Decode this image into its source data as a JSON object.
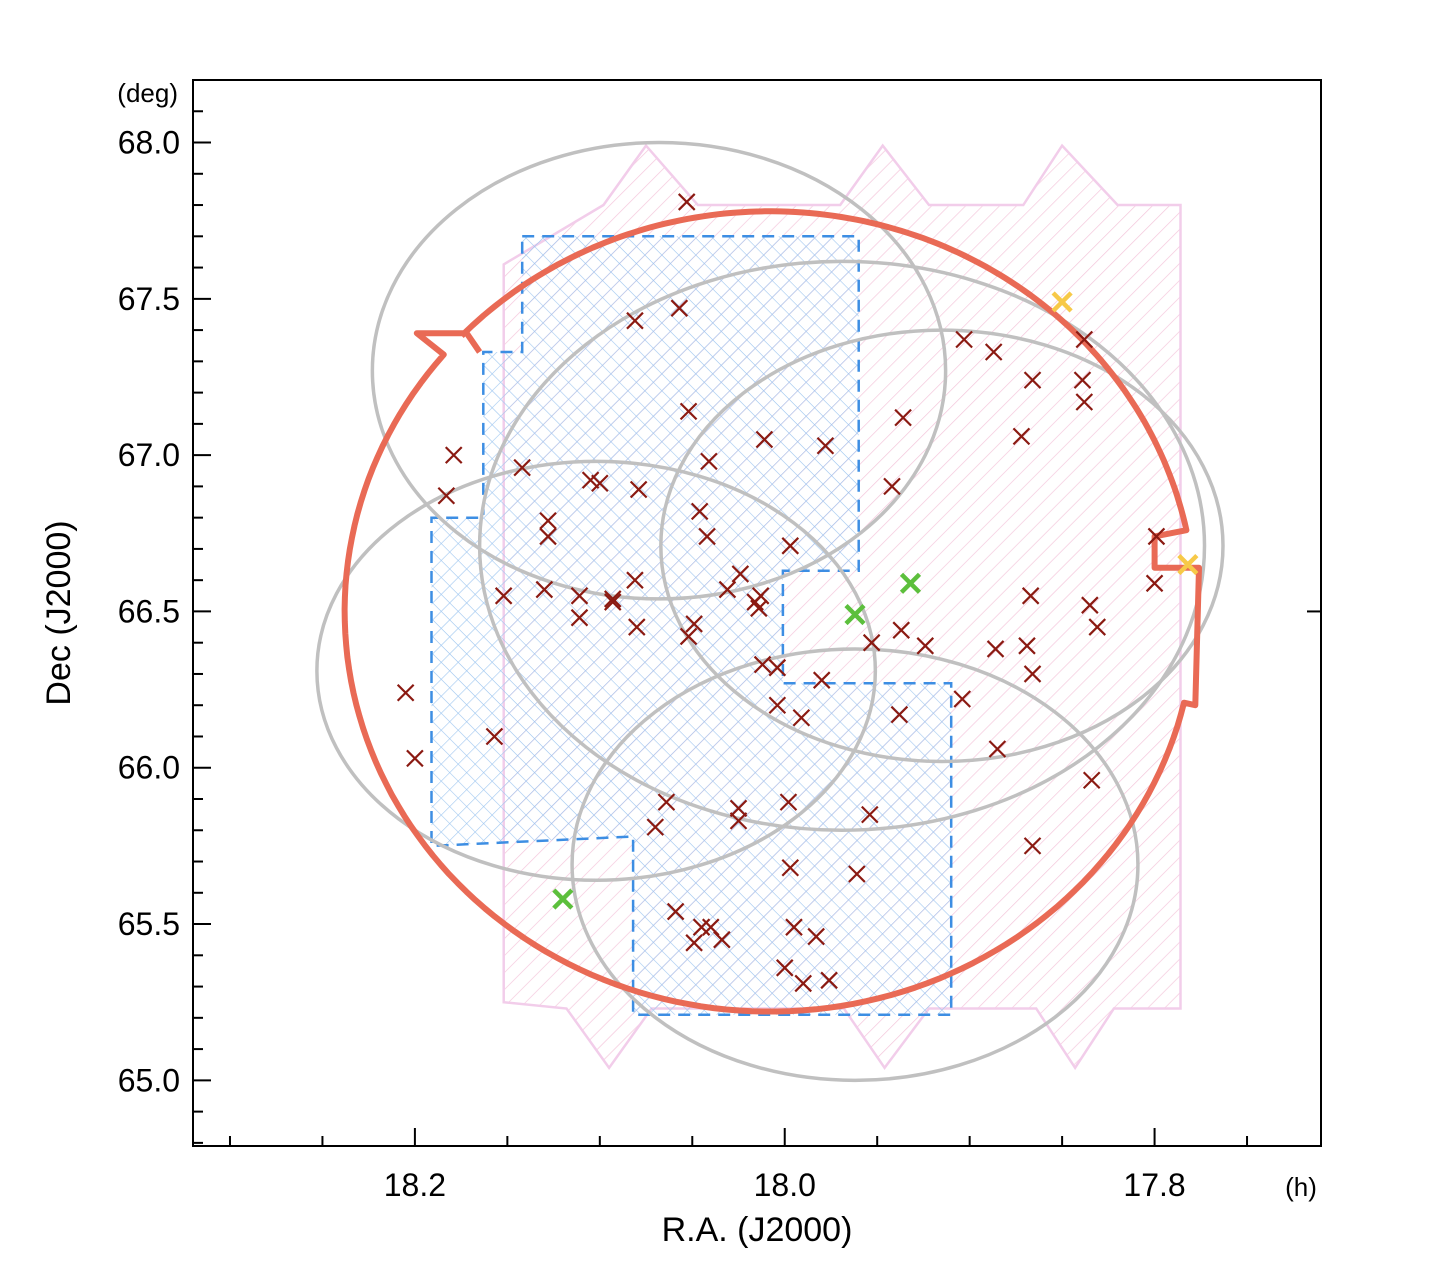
{
  "chart_data": {
    "type": "scatter",
    "title": "",
    "xlabel": "R.A. (J2000)",
    "ylabel": "Dec (J2000)",
    "x_unit": "(h)",
    "y_unit": "(deg)",
    "xlim": [
      18.32,
      17.71
    ],
    "ylim": [
      64.79,
      68.2
    ],
    "x_ticks": [
      18.2,
      18.0,
      17.8
    ],
    "x_tick_labels": [
      "18.2",
      "18.0",
      "17.8"
    ],
    "y_ticks": [
      65.0,
      65.5,
      66.0,
      66.5,
      67.0,
      67.5,
      68.0
    ],
    "y_tick_labels": [
      "65.0",
      "65.5",
      "66.0",
      "66.5",
      "67.0",
      "67.5",
      "68.0"
    ],
    "x_minor_step": 0.05,
    "y_minor_step": 0.1,
    "colors": {
      "dark_red": "#8b1a12",
      "green": "#5cbf3c",
      "yellow": "#f7c948",
      "red_outline": "#e96a55",
      "blue_dashed": "#3d8ee3",
      "blue_hatch": "#9ec6f0",
      "pink_outline": "#f2cdea",
      "pink_hatch": "#f4c7dc",
      "grey_circle": "#c0c0c0"
    },
    "pink_region": {
      "name": "pink hatched survey footprint",
      "polygon": [
        [
          18.152,
          67.61
        ],
        [
          18.098,
          67.8
        ],
        [
          18.075,
          67.99
        ],
        [
          18.047,
          67.8
        ],
        [
          17.97,
          67.8
        ],
        [
          17.947,
          67.99
        ],
        [
          17.922,
          67.8
        ],
        [
          17.871,
          67.8
        ],
        [
          17.85,
          67.99
        ],
        [
          17.82,
          67.8
        ],
        [
          17.786,
          67.8
        ],
        [
          17.786,
          65.23
        ],
        [
          17.822,
          65.23
        ],
        [
          17.843,
          65.04
        ],
        [
          17.864,
          65.23
        ],
        [
          17.922,
          65.23
        ],
        [
          17.946,
          65.04
        ],
        [
          17.968,
          65.23
        ],
        [
          18.072,
          65.23
        ],
        [
          18.095,
          65.04
        ],
        [
          18.118,
          65.23
        ],
        [
          18.152,
          65.25
        ]
      ]
    },
    "blue_region": {
      "name": "blue dashed cross-hatched region",
      "polygon": [
        [
          18.142,
          67.7
        ],
        [
          17.96,
          67.7
        ],
        [
          17.96,
          66.63
        ],
        [
          18.001,
          66.63
        ],
        [
          18.001,
          66.27
        ],
        [
          17.91,
          66.27
        ],
        [
          17.91,
          65.21
        ],
        [
          18.082,
          65.21
        ],
        [
          18.082,
          65.78
        ],
        [
          18.191,
          65.75
        ],
        [
          18.191,
          66.8
        ],
        [
          18.163,
          66.8
        ],
        [
          18.163,
          67.33
        ],
        [
          18.142,
          67.33
        ]
      ]
    },
    "fov_circles": [
      {
        "name": "fov-circle-1",
        "center": [
          18.068,
          67.27
        ],
        "ra_radius": 0.155,
        "dec_radius": 0.73
      },
      {
        "name": "fov-circle-2",
        "center": [
          17.915,
          66.71
        ],
        "ra_radius": 0.152,
        "dec_radius": 0.69
      },
      {
        "name": "fov-circle-3",
        "center": [
          18.102,
          66.31
        ],
        "ra_radius": 0.151,
        "dec_radius": 0.67
      },
      {
        "name": "fov-circle-4",
        "center": [
          17.962,
          65.69
        ],
        "ra_radius": 0.153,
        "dec_radius": 0.69
      },
      {
        "name": "fov-circle-5",
        "center": [
          17.969,
          66.71
        ],
        "ra_radius": 0.196,
        "dec_radius": 0.91
      }
    ],
    "red_outline": {
      "name": "red boundary",
      "center": [
        18.008,
        66.5
      ],
      "ra_radius": 0.23,
      "dec_radius": 1.28,
      "extra_points": [
        [
          18.165,
          67.33
        ],
        [
          18.172,
          67.39
        ],
        [
          18.199,
          67.39
        ]
      ],
      "notch_points": [
        [
          17.8,
          66.74
        ],
        [
          17.8,
          66.64
        ],
        [
          17.776,
          66.64
        ],
        [
          17.778,
          66.2
        ]
      ]
    },
    "series": [
      {
        "name": "dark red crosses",
        "color": "#8b1a12",
        "points": [
          [
            18.053,
            67.81
          ],
          [
            18.081,
            67.43
          ],
          [
            18.057,
            67.47
          ],
          [
            18.052,
            67.14
          ],
          [
            18.179,
            67.0
          ],
          [
            18.183,
            66.87
          ],
          [
            18.142,
            66.96
          ],
          [
            18.128,
            66.79
          ],
          [
            18.128,
            66.74
          ],
          [
            18.105,
            66.92
          ],
          [
            18.1,
            66.91
          ],
          [
            18.079,
            66.89
          ],
          [
            18.046,
            66.82
          ],
          [
            18.042,
            66.74
          ],
          [
            18.041,
            66.98
          ],
          [
            18.011,
            67.05
          ],
          [
            17.997,
            66.71
          ],
          [
            17.978,
            67.03
          ],
          [
            17.936,
            67.12
          ],
          [
            17.942,
            66.9
          ],
          [
            17.903,
            67.37
          ],
          [
            17.887,
            67.33
          ],
          [
            17.866,
            67.24
          ],
          [
            17.872,
            67.06
          ],
          [
            17.838,
            67.37
          ],
          [
            17.839,
            67.24
          ],
          [
            17.838,
            67.17
          ],
          [
            17.799,
            66.74
          ],
          [
            17.8,
            66.59
          ],
          [
            17.835,
            66.52
          ],
          [
            17.831,
            66.45
          ],
          [
            17.867,
            66.55
          ],
          [
            17.869,
            66.39
          ],
          [
            17.886,
            66.38
          ],
          [
            17.866,
            66.3
          ],
          [
            17.904,
            66.22
          ],
          [
            17.885,
            66.06
          ],
          [
            17.834,
            65.96
          ],
          [
            17.866,
            65.75
          ],
          [
            17.937,
            66.44
          ],
          [
            17.924,
            66.39
          ],
          [
            17.953,
            66.4
          ],
          [
            17.938,
            66.17
          ],
          [
            17.98,
            66.28
          ],
          [
            17.991,
            66.16
          ],
          [
            18.012,
            66.33
          ],
          [
            18.004,
            66.32
          ],
          [
            18.004,
            66.2
          ],
          [
            18.016,
            66.53
          ],
          [
            18.014,
            66.51
          ],
          [
            18.013,
            66.55
          ],
          [
            18.024,
            66.62
          ],
          [
            18.031,
            66.57
          ],
          [
            18.049,
            66.46
          ],
          [
            18.052,
            66.42
          ],
          [
            18.081,
            66.6
          ],
          [
            18.093,
            66.54
          ],
          [
            18.093,
            66.53
          ],
          [
            18.08,
            66.45
          ],
          [
            18.111,
            66.55
          ],
          [
            18.111,
            66.48
          ],
          [
            18.152,
            66.55
          ],
          [
            18.13,
            66.57
          ],
          [
            18.205,
            66.24
          ],
          [
            18.2,
            66.03
          ],
          [
            18.157,
            66.1
          ],
          [
            18.064,
            65.89
          ],
          [
            18.07,
            65.81
          ],
          [
            18.025,
            65.87
          ],
          [
            18.025,
            65.83
          ],
          [
            17.998,
            65.89
          ],
          [
            17.954,
            65.85
          ],
          [
            17.997,
            65.68
          ],
          [
            17.961,
            65.66
          ],
          [
            18.059,
            65.54
          ],
          [
            18.045,
            65.49
          ],
          [
            18.04,
            65.49
          ],
          [
            18.049,
            65.44
          ],
          [
            18.034,
            65.45
          ],
          [
            18.0,
            65.36
          ],
          [
            17.995,
            65.49
          ],
          [
            17.983,
            65.46
          ],
          [
            17.99,
            65.31
          ],
          [
            17.976,
            65.32
          ]
        ]
      },
      {
        "name": "green crosses",
        "color": "#5cbf3c",
        "points": [
          [
            17.962,
            66.49
          ],
          [
            17.932,
            66.59
          ],
          [
            18.12,
            65.58
          ]
        ]
      },
      {
        "name": "yellow crosses",
        "color": "#f7c948",
        "points": [
          [
            17.85,
            67.49
          ],
          [
            17.782,
            66.65
          ]
        ]
      }
    ]
  }
}
